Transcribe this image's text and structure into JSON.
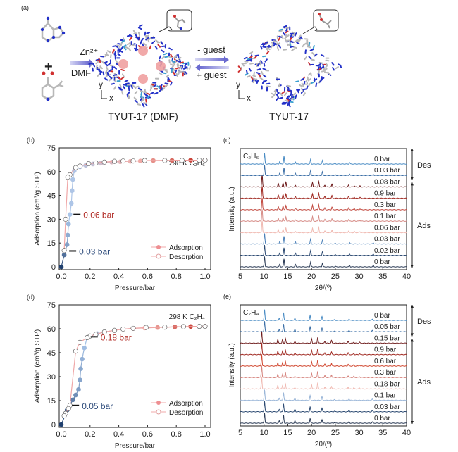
{
  "scheme": {
    "panel_label": "(a)",
    "step1_top": "Zn²⁺",
    "step1_bottom": "DMF",
    "plus": "+",
    "forward": "- guest",
    "backward": "+ guest",
    "product1": "TYUT-17 (DMF)",
    "product2": "TYUT-17",
    "axis_y": "y",
    "axis_x": "x"
  },
  "colors": {
    "ads_low": "#1f3f6e",
    "ads_mid_blue": "#a9c6ea",
    "ads_mid_pink": "#f2b2ad",
    "ads_high": "#c0281c",
    "n": "#2230c8",
    "o": "#d03030",
    "c": "#b8b8b8"
  },
  "chart_data": [
    {
      "panel": "(b)",
      "type": "scatter",
      "title": "298 K C₂H₆",
      "xlabel": "Pressure/bar",
      "ylabel": "Adsorption (cm³/g STP)",
      "xlim": [
        0,
        1
      ],
      "ylim": [
        0,
        75
      ],
      "xticks": [
        "0.0",
        "0.2",
        "0.4",
        "0.6",
        "0.8",
        "1.0"
      ],
      "yticks": [
        "0",
        "15",
        "30",
        "45",
        "60",
        "75"
      ],
      "legend": [
        "Adsorption",
        "Desorption"
      ],
      "legend_position": "bottom-right",
      "annotations": [
        {
          "text": "0.06 bar",
          "x": 0.06,
          "y": 33
        },
        {
          "text": "0.03 bar",
          "x": 0.03,
          "y": 10
        }
      ],
      "series": [
        {
          "name": "Adsorption",
          "points": [
            [
              0,
              0
            ],
            [
              0.02,
              7.5
            ],
            [
              0.04,
              14
            ],
            [
              0.045,
              20
            ],
            [
              0.05,
              27
            ],
            [
              0.06,
              33
            ],
            [
              0.07,
              40
            ],
            [
              0.075,
              48
            ],
            [
              0.08,
              55
            ],
            [
              0.09,
              60.5
            ],
            [
              0.13,
              63
            ],
            [
              0.17,
              64
            ],
            [
              0.22,
              64.8
            ],
            [
              0.27,
              65.3
            ],
            [
              0.28,
              65.5
            ],
            [
              0.35,
              66
            ],
            [
              0.41,
              66.2
            ],
            [
              0.48,
              66.5
            ],
            [
              0.55,
              66.7
            ],
            [
              0.64,
              67
            ],
            [
              0.77,
              67.1
            ],
            [
              0.9,
              67.2
            ],
            [
              1.0,
              67.2
            ]
          ]
        },
        {
          "name": "Desorption",
          "points": [
            [
              1.0,
              67.2
            ],
            [
              0.96,
              67.2
            ],
            [
              0.84,
              67.1
            ],
            [
              0.72,
              67
            ],
            [
              0.58,
              67
            ],
            [
              0.5,
              66.7
            ],
            [
              0.43,
              66.7
            ],
            [
              0.37,
              66.5
            ],
            [
              0.3,
              66
            ],
            [
              0.24,
              65.5
            ],
            [
              0.19,
              65
            ],
            [
              0.13,
              63.5
            ],
            [
              0.1,
              62.5
            ],
            [
              0.06,
              58
            ],
            [
              0.045,
              56.5
            ],
            [
              0.03,
              30
            ],
            [
              0.02,
              10.3
            ]
          ]
        }
      ]
    },
    {
      "panel": "(c)",
      "type": "line",
      "title": "C₂H₆",
      "xlabel": "2θ/(º)",
      "ylabel": "Intensity (a.u.)",
      "xlim": [
        5,
        40
      ],
      "xticks": [
        "5",
        "10",
        "15",
        "20",
        "25",
        "30",
        "35",
        "40"
      ],
      "brackets": [
        "Des",
        "Ads"
      ],
      "peaks_open": [
        [
          10.1,
          1
        ],
        [
          13.3,
          0.25
        ],
        [
          14.2,
          0.75
        ],
        [
          16.6,
          0.22
        ],
        [
          19.8,
          0.45
        ],
        [
          22.3,
          0.35
        ],
        [
          25,
          0.06
        ],
        [
          28,
          0.15
        ],
        [
          33,
          0.12
        ]
      ],
      "peaks_loaded": [
        [
          9.6,
          1
        ],
        [
          13,
          0.28
        ],
        [
          14,
          0.3
        ],
        [
          14.6,
          0.38
        ],
        [
          16.6,
          0.12
        ],
        [
          20.2,
          0.38
        ],
        [
          21.5,
          0.45
        ],
        [
          22.8,
          0.15
        ],
        [
          24.3,
          0.22
        ],
        [
          27.8,
          0.15
        ],
        [
          29,
          0.1
        ],
        [
          30.2,
          0.08
        ]
      ],
      "traces": [
        {
          "label": "0 bar",
          "form": "open",
          "color": "#2a3a55"
        },
        {
          "label": "0.02 bar",
          "form": "open",
          "color": "#2c4a72"
        },
        {
          "label": "0.03 bar",
          "form": "open",
          "color": "#4b80b8"
        },
        {
          "label": "0.06 bar",
          "form": "loaded",
          "color": "#f0b9b1"
        },
        {
          "label": "0.1 bar",
          "form": "loaded",
          "color": "#d68b86"
        },
        {
          "label": "0.3 bar",
          "form": "loaded",
          "color": "#c24a40"
        },
        {
          "label": "0.9 bar",
          "form": "loaded",
          "color": "#a02a22"
        },
        {
          "label": "0.08 bar",
          "form": "loaded",
          "color": "#6e1c1c"
        },
        {
          "label": "0.03 bar",
          "form": "open",
          "color": "#3c6fa6"
        },
        {
          "label": "0 bar",
          "form": "open",
          "color": "#4a8cc4"
        }
      ]
    },
    {
      "panel": "(d)",
      "type": "scatter",
      "title": "298 K C₂H₄",
      "xlabel": "Pressure/bar",
      "ylabel": "Adsorption (cm³/g STP)",
      "xlim": [
        0,
        1
      ],
      "ylim": [
        0,
        75
      ],
      "xticks": [
        "0.0",
        "0.2",
        "0.4",
        "0.6",
        "0.8",
        "1.0"
      ],
      "yticks": [
        "0",
        "15",
        "30",
        "45",
        "60",
        "75"
      ],
      "legend": [
        "Adsorption",
        "Desorption"
      ],
      "legend_position": "bottom-right",
      "annotations": [
        {
          "text": "0.18 bar",
          "x": 0.18,
          "y": 55
        },
        {
          "text": "0.05 bar",
          "x": 0.05,
          "y": 12
        }
      ],
      "series": [
        {
          "name": "Adsorption",
          "points": [
            [
              0,
              0
            ],
            [
              0.04,
              9
            ],
            [
              0.06,
              12
            ],
            [
              0.08,
              15.5
            ],
            [
              0.1,
              18.5
            ],
            [
              0.12,
              22
            ],
            [
              0.13,
              28
            ],
            [
              0.135,
              35
            ],
            [
              0.145,
              41
            ],
            [
              0.16,
              48
            ],
            [
              0.18,
              54.5
            ],
            [
              0.25,
              57
            ],
            [
              0.3,
              58
            ],
            [
              0.37,
              59
            ],
            [
              0.43,
              59.8
            ],
            [
              0.5,
              60.2
            ],
            [
              0.58,
              60.5
            ],
            [
              0.67,
              60.8
            ],
            [
              0.79,
              61.2
            ],
            [
              0.9,
              61.4
            ],
            [
              1.0,
              61.5
            ]
          ]
        },
        {
          "name": "Desorption",
          "points": [
            [
              1.0,
              61.5
            ],
            [
              0.96,
              61.5
            ],
            [
              0.85,
              61.3
            ],
            [
              0.72,
              61
            ],
            [
              0.59,
              60.8
            ],
            [
              0.5,
              60.3
            ],
            [
              0.43,
              59.8
            ],
            [
              0.37,
              59
            ],
            [
              0.3,
              58
            ],
            [
              0.24,
              56.5
            ],
            [
              0.2,
              55.5
            ],
            [
              0.18,
              54.5
            ],
            [
              0.13,
              51.5
            ],
            [
              0.1,
              46
            ],
            [
              0.06,
              12
            ],
            [
              0.05,
              10
            ],
            [
              0.03,
              7
            ],
            [
              0.02,
              5.5
            ]
          ]
        }
      ]
    },
    {
      "panel": "(e)",
      "type": "line",
      "title": "C₂H₄",
      "xlabel": "2θ/(º)",
      "ylabel": "Intensity (a.u.)",
      "xlim": [
        5,
        40
      ],
      "xticks": [
        "5",
        "10",
        "15",
        "20",
        "25",
        "30",
        "35",
        "40"
      ],
      "brackets": [
        "Des",
        "Ads"
      ],
      "peaks_open": [
        [
          10.1,
          1
        ],
        [
          13.2,
          0.22
        ],
        [
          14.1,
          0.75
        ],
        [
          16.5,
          0.22
        ],
        [
          19.7,
          0.45
        ],
        [
          22.2,
          0.35
        ],
        [
          24.8,
          0.06
        ],
        [
          27.9,
          0.15
        ],
        [
          32.8,
          0.12
        ]
      ],
      "peaks_loaded": [
        [
          9.5,
          1
        ],
        [
          12.9,
          0.3
        ],
        [
          13.9,
          0.3
        ],
        [
          14.5,
          0.4
        ],
        [
          16.5,
          0.12
        ],
        [
          20,
          0.38
        ],
        [
          21.3,
          0.5
        ],
        [
          22.8,
          0.15
        ],
        [
          24.2,
          0.22
        ],
        [
          27.7,
          0.15
        ],
        [
          28.9,
          0.1
        ],
        [
          30.1,
          0.08
        ]
      ],
      "traces": [
        {
          "label": "0 bar",
          "form": "open",
          "color": "#2a3a55"
        },
        {
          "label": "0.03 bar",
          "form": "open",
          "color": "#2c4a72"
        },
        {
          "label": "0.1 bar",
          "form": "open",
          "color": "#9ab6d8"
        },
        {
          "label": "0.18 bar",
          "form": "loaded",
          "color": "#f0b9b1"
        },
        {
          "label": "0.3 bar",
          "form": "loaded",
          "color": "#d4807a"
        },
        {
          "label": "0.6 bar",
          "form": "loaded",
          "color": "#d0462e"
        },
        {
          "label": "0.9 bar",
          "form": "loaded",
          "color": "#a02a22"
        },
        {
          "label": "0.15 bar",
          "form": "loaded",
          "color": "#6e1c1c"
        },
        {
          "label": "0.05 bar",
          "form": "open",
          "color": "#3c6fa6"
        },
        {
          "label": "0 bar",
          "form": "open",
          "color": "#4a8cc4"
        }
      ]
    }
  ]
}
